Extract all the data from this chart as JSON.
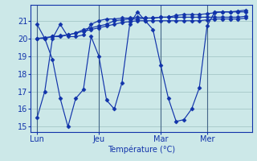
{
  "background_color": "#cce8e8",
  "grid_color": "#aacccc",
  "line_color": "#1133aa",
  "marker": "D",
  "marker_size": 2.5,
  "xlabel": "Température (°C)",
  "ylim": [
    14.7,
    21.9
  ],
  "yticks": [
    15,
    16,
    17,
    18,
    19,
    20,
    21
  ],
  "xtick_labels": [
    "Lun",
    "Jeu",
    "Mar",
    "Mer"
  ],
  "xtick_positions": [
    0,
    8,
    16,
    22
  ],
  "xcount": 28,
  "series": [
    [
      15.5,
      17.0,
      20.0,
      20.8,
      20.1,
      20.1,
      20.2,
      20.8,
      21.0,
      21.1,
      21.1,
      21.15,
      21.15,
      21.2,
      21.15,
      21.15,
      21.2,
      21.2,
      21.3,
      21.35,
      21.35,
      21.35,
      21.4,
      21.45,
      21.5,
      21.5,
      21.55,
      21.6
    ],
    [
      20.8,
      20.0,
      18.8,
      16.6,
      15.0,
      16.6,
      17.1,
      20.1,
      19.0,
      16.5,
      16.0,
      17.5,
      20.8,
      21.5,
      21.0,
      20.5,
      18.5,
      16.6,
      15.3,
      15.4,
      16.0,
      17.2,
      20.7,
      21.5,
      21.5,
      21.5,
      21.5,
      21.5
    ],
    [
      20.0,
      20.0,
      20.1,
      20.1,
      20.2,
      20.3,
      20.5,
      20.6,
      20.7,
      20.8,
      21.0,
      21.05,
      21.1,
      21.1,
      21.15,
      21.15,
      21.2,
      21.2,
      21.2,
      21.2,
      21.2,
      21.2,
      21.2,
      21.2,
      21.2,
      21.2,
      21.2,
      21.25
    ],
    [
      20.0,
      20.05,
      20.1,
      20.15,
      20.2,
      20.3,
      20.4,
      20.5,
      20.6,
      20.7,
      20.8,
      20.9,
      20.95,
      21.0,
      21.0,
      21.0,
      21.0,
      21.0,
      21.0,
      21.0,
      21.0,
      21.0,
      21.05,
      21.1,
      21.1,
      21.1,
      21.1,
      21.15
    ]
  ]
}
